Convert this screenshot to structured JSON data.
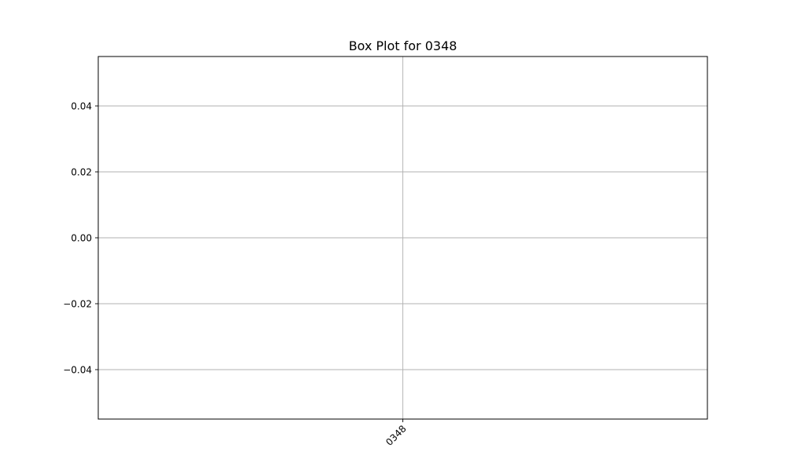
{
  "chart_data": {
    "type": "box",
    "title": "Box Plot for 0348",
    "xlabel": "",
    "ylabel": "",
    "categories": [
      "0348"
    ],
    "series": [
      {
        "values": []
      }
    ],
    "ylim": [
      -0.055,
      0.055
    ],
    "y_ticks": [
      0.04,
      0.02,
      0.0,
      -0.02,
      -0.04
    ],
    "y_tick_labels": [
      "0.04",
      "0.02",
      "0.00",
      "−0.02",
      "−0.04"
    ],
    "x_tick_rotation_deg": 45,
    "grid": true,
    "legend": "none",
    "colors": {
      "grid": "#b0b0b0",
      "axes": "#000000",
      "background": "#ffffff"
    }
  }
}
